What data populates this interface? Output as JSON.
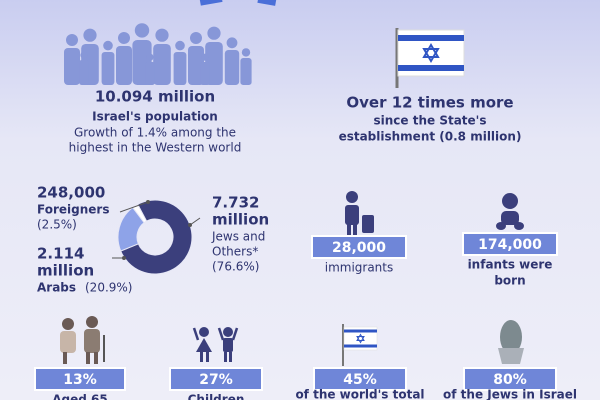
{
  "population": {
    "value": "10.094 million",
    "label": "Israel's population",
    "growth": [
      "Growth of 1.4%  among the",
      "highest in the Western world"
    ]
  },
  "growth_since": {
    "headline": "Over 12 times more",
    "lines": [
      "since the State's",
      "establishment (0.8 million)"
    ]
  },
  "composition": {
    "counts": [
      [
        "7.732",
        "million"
      ],
      [
        "2.114",
        "million"
      ],
      [
        "248,000"
      ]
    ],
    "names": [
      [
        "Jews and",
        "Others*"
      ],
      [
        "Arabs"
      ],
      [
        "Foreigners"
      ]
    ],
    "values": [
      76.6,
      20.9,
      2.5
    ],
    "value_labels": [
      "(76.6%)",
      "(20.9%)",
      "(2.5%)"
    ],
    "colors": [
      "#3b3f7c",
      "#8ea3e8",
      "#ffffff"
    ]
  },
  "stats": [
    {
      "value": "28,000",
      "label": [
        "immigrants"
      ]
    },
    {
      "value": "174,000",
      "label": [
        "infants were",
        "born"
      ]
    },
    {
      "value": "13%",
      "label": [
        "Aged 65"
      ]
    },
    {
      "value": "27%",
      "label": [
        "Children"
      ]
    },
    {
      "value": "45%",
      "label": [
        "of the world's total"
      ]
    },
    {
      "value": "80%",
      "label": [
        "of the Jews in Israel"
      ]
    }
  ]
}
